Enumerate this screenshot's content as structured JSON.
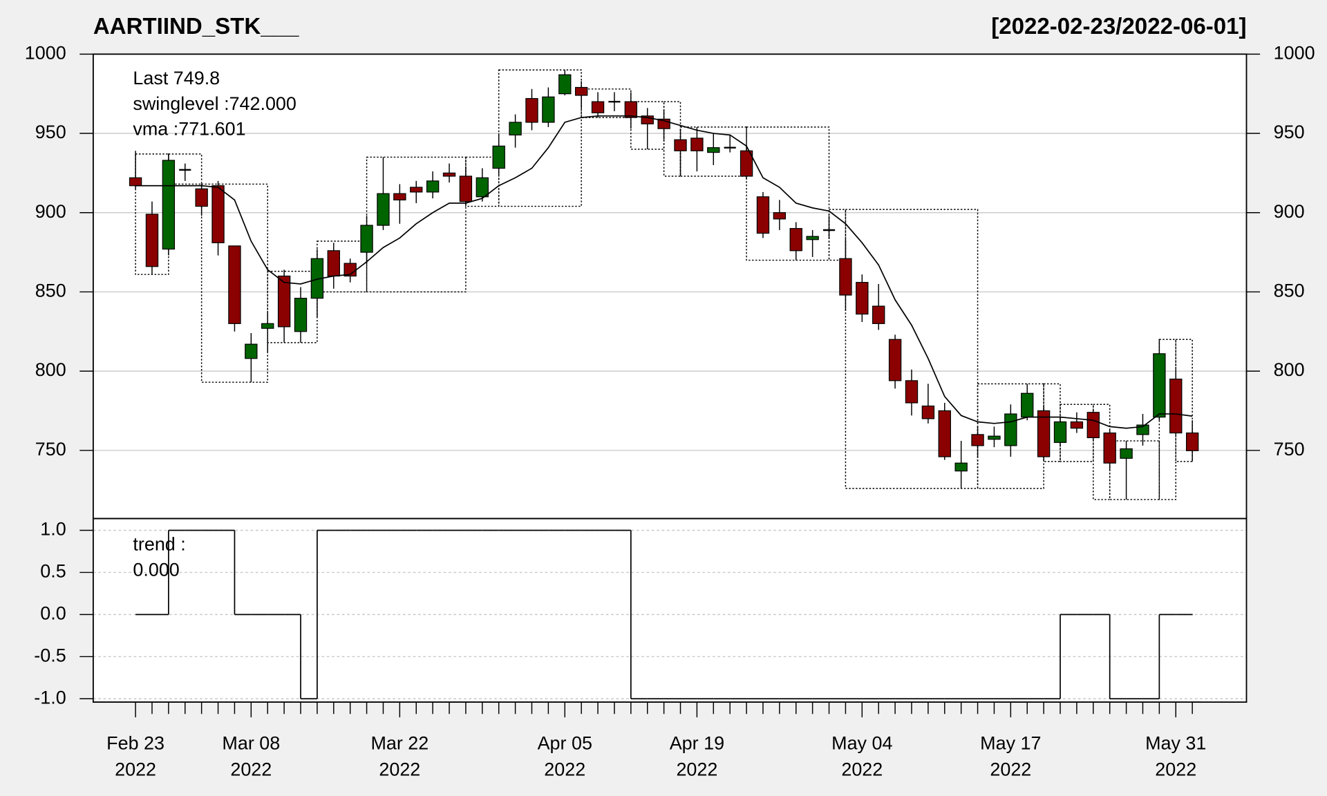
{
  "chart_data": [
    {
      "type": "candlestick",
      "title": "AARTIIND_STK___",
      "subtitle": "[2022-02-23/2022-06-01]",
      "categories": [
        [
          "Feb 23",
          "2022"
        ],
        null,
        null,
        null,
        null,
        null,
        null,
        [
          "Mar 08",
          "2022"
        ],
        null,
        null,
        null,
        null,
        null,
        null,
        null,
        null,
        [
          "Mar 22",
          "2022"
        ],
        null,
        null,
        null,
        null,
        null,
        null,
        null,
        null,
        null,
        [
          "Apr 05",
          "2022"
        ],
        null,
        null,
        null,
        null,
        null,
        null,
        null,
        [
          "Apr 19",
          "2022"
        ],
        null,
        null,
        null,
        null,
        null,
        null,
        null,
        null,
        null,
        [
          "May 04",
          "2022"
        ],
        null,
        null,
        null,
        null,
        null,
        null,
        null,
        null,
        [
          "May 17",
          "2022"
        ],
        null,
        null,
        null,
        null,
        null,
        null,
        null,
        null,
        null,
        [
          "May 31",
          "2022"
        ],
        null
      ],
      "open": [
        922,
        899,
        877,
        927,
        915,
        917,
        879,
        808,
        827,
        860,
        825,
        846,
        876,
        868,
        875,
        892,
        912,
        916,
        913,
        925,
        923,
        910,
        928,
        949,
        972,
        957,
        975,
        979,
        970,
        970,
        970,
        961,
        959,
        946,
        947,
        938,
        941,
        939,
        910,
        900,
        890,
        883,
        889,
        871,
        856,
        841,
        820,
        794,
        778,
        775,
        737,
        760,
        757,
        753,
        771,
        775,
        755,
        768,
        774,
        761,
        745,
        760,
        771,
        795,
        761
      ],
      "high": [
        939,
        907,
        937,
        931,
        918,
        920,
        879,
        824,
        837,
        864,
        853,
        877,
        881,
        871,
        898,
        935,
        918,
        920,
        926,
        931,
        929,
        928,
        950,
        962,
        978,
        979,
        990,
        983,
        976,
        976,
        976,
        966,
        965,
        953,
        954,
        950,
        949,
        942,
        913,
        908,
        894,
        889,
        898,
        883,
        861,
        855,
        823,
        801,
        792,
        780,
        756,
        765,
        765,
        779,
        792,
        778,
        771,
        774,
        776,
        763,
        756,
        773,
        820,
        801,
        769
      ],
      "low": [
        915,
        861,
        873,
        920,
        898,
        873,
        825,
        793,
        812,
        818,
        818,
        834,
        852,
        856,
        868,
        889,
        893,
        906,
        909,
        919,
        905,
        907,
        924,
        941,
        952,
        954,
        974,
        966,
        960,
        964,
        953,
        940,
        946,
        923,
        926,
        930,
        938,
        921,
        884,
        889,
        870,
        872,
        884,
        838,
        831,
        826,
        789,
        772,
        767,
        744,
        726,
        746,
        752,
        746,
        769,
        744,
        753,
        761,
        756,
        738,
        719,
        753,
        769,
        760,
        743
      ],
      "close": [
        917,
        866,
        933,
        927,
        904,
        881,
        830,
        817,
        830,
        828,
        846,
        871,
        860,
        860,
        892,
        912,
        908,
        913,
        920,
        923,
        907,
        922,
        942,
        957,
        957,
        973,
        987,
        974,
        963,
        970,
        960,
        956,
        953,
        939,
        939,
        941,
        941,
        923,
        887,
        896,
        876,
        885,
        889,
        848,
        836,
        830,
        794,
        780,
        770,
        746,
        742,
        753,
        759,
        773,
        786,
        746,
        768,
        764,
        758,
        742,
        751,
        766,
        811,
        761,
        749.8
      ],
      "up_color": "#006400",
      "down_color": "#8b0000",
      "doji_color": "#000000",
      "vma": {
        "color": "#000000",
        "values": [
          917,
          917,
          917,
          917,
          917,
          916,
          908,
          882,
          864,
          856,
          855,
          858,
          860,
          861,
          869,
          878,
          884,
          893,
          900,
          906,
          906,
          909,
          917,
          922,
          928,
          941,
          957,
          960,
          961,
          961,
          961,
          960,
          958,
          955,
          952,
          950,
          949,
          942,
          922,
          916,
          906,
          903,
          901,
          893,
          881,
          867,
          845,
          829,
          808,
          784,
          772,
          768,
          767,
          768,
          771,
          771,
          771,
          770,
          769,
          765,
          764,
          765,
          773,
          773,
          771.6
        ]
      },
      "swings": [
        {
          "start": 0,
          "end": 2,
          "high": 937,
          "low": 861
        },
        {
          "start": 2,
          "end": 4,
          "high": 937,
          "low": 918
        },
        {
          "start": 4,
          "end": 8,
          "high": 918,
          "low": 793
        },
        {
          "start": 8,
          "end": 11,
          "high": 863,
          "low": 818
        },
        {
          "start": 11,
          "end": 14,
          "high": 882,
          "low": 850
        },
        {
          "start": 14,
          "end": 20,
          "high": 935,
          "low": 850
        },
        {
          "start": 20,
          "end": 22,
          "high": 935,
          "low": 904
        },
        {
          "start": 22,
          "end": 27,
          "high": 990,
          "low": 904
        },
        {
          "start": 27,
          "end": 30,
          "high": 978,
          "low": 960
        },
        {
          "start": 30,
          "end": 32,
          "high": 970,
          "low": 940
        },
        {
          "start": 32,
          "end": 33,
          "high": 970,
          "low": 923
        },
        {
          "start": 33,
          "end": 37,
          "high": 954,
          "low": 923
        },
        {
          "start": 37,
          "end": 42,
          "high": 954,
          "low": 870
        },
        {
          "start": 42,
          "end": 43,
          "high": 902,
          "low": 870
        },
        {
          "start": 43,
          "end": 51,
          "high": 902,
          "low": 726
        },
        {
          "start": 51,
          "end": 55,
          "high": 792,
          "low": 726
        },
        {
          "start": 55,
          "end": 56,
          "high": 792,
          "low": 743
        },
        {
          "start": 56,
          "end": 58,
          "high": 779,
          "low": 743
        },
        {
          "start": 58,
          "end": 59,
          "high": 779,
          "low": 719
        },
        {
          "start": 59,
          "end": 62,
          "high": 756,
          "low": 719
        },
        {
          "start": 62,
          "end": 63,
          "high": 820,
          "low": 719
        },
        {
          "start": 63,
          "end": 64,
          "high": 820,
          "low": 743
        }
      ],
      "annotations": [
        {
          "text": "Last 749.8",
          "color": "#8b0000"
        },
        {
          "text": "swinglevel :742.000",
          "color": "#000000"
        },
        {
          "text": "vma :771.601",
          "color": "#000000"
        }
      ],
      "ylim": [
        707,
        1000
      ],
      "yticks": [
        750,
        800,
        850,
        900,
        950,
        1000
      ],
      "grid": true
    },
    {
      "type": "step",
      "color": "#000000",
      "values": [
        0,
        0,
        1,
        1,
        1,
        1,
        0,
        0,
        0,
        0,
        -1,
        1,
        1,
        1,
        1,
        1,
        1,
        1,
        1,
        1,
        1,
        1,
        1,
        1,
        1,
        1,
        1,
        1,
        1,
        1,
        -1,
        -1,
        -1,
        -1,
        -1,
        -1,
        -1,
        -1,
        -1,
        -1,
        -1,
        -1,
        -1,
        -1,
        -1,
        -1,
        -1,
        -1,
        -1,
        -1,
        -1,
        -1,
        -1,
        -1,
        -1,
        -1,
        0,
        0,
        0,
        -1,
        -1,
        -1,
        0,
        0,
        0
      ],
      "annotations": [
        {
          "text": "trend :",
          "color": "#000000"
        },
        {
          "text": "0.000",
          "color": "#000000"
        }
      ],
      "ylim": [
        -1.04,
        1.14
      ],
      "yticks": [
        {
          "value": -1,
          "label": "-1.0"
        },
        {
          "value": -0.5,
          "label": "-0.5"
        },
        {
          "value": 0,
          "label": "0.0"
        },
        {
          "value": 0.5,
          "label": "0.5"
        },
        {
          "value": 1,
          "label": "1.0"
        }
      ],
      "grid": true
    }
  ]
}
